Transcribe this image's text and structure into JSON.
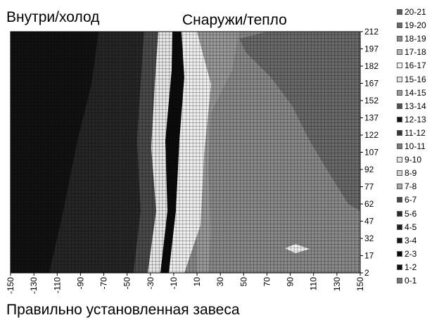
{
  "labels": {
    "left_title": "Внутри/холод",
    "right_title": "Снаружи/тепло",
    "caption": "Правильно установленная завеса"
  },
  "chart_data": {
    "type": "heatmap",
    "subtype": "filled-contour",
    "x_ticks": [
      "-150",
      "-130",
      "-110",
      "-90",
      "-70",
      "-50",
      "-30",
      "-10",
      "10",
      "30",
      "50",
      "70",
      "90",
      "110",
      "130",
      "150"
    ],
    "y_ticks": [
      "212",
      "197",
      "182",
      "167",
      "152",
      "137",
      "122",
      "107",
      "92",
      "77",
      "62",
      "47",
      "32",
      "17",
      "2"
    ],
    "xlim": [
      -150,
      150
    ],
    "ylim": [
      2,
      212
    ],
    "grid": true,
    "legend_position": "right",
    "legend": [
      {
        "label": "20-21",
        "color": "#5e5e5e"
      },
      {
        "label": "19-20",
        "color": "#6a6a6a"
      },
      {
        "label": "18-19",
        "color": "#8c8c8c"
      },
      {
        "label": "17-18",
        "color": "#b4b4b4"
      },
      {
        "label": "16-17",
        "color": "#f2f2f2"
      },
      {
        "label": "15-16",
        "color": "#e2e2e2"
      },
      {
        "label": "14-15",
        "color": "#9a9a9a"
      },
      {
        "label": "13-14",
        "color": "#505050"
      },
      {
        "label": "12-13",
        "color": "#141414"
      },
      {
        "label": "11-12",
        "color": "#363636"
      },
      {
        "label": "10-11",
        "color": "#7a7a7a"
      },
      {
        "label": "9-10",
        "color": "#e6e6e6"
      },
      {
        "label": "8-9",
        "color": "#cfcfcf"
      },
      {
        "label": "7-8",
        "color": "#a8a8a8"
      },
      {
        "label": "6-7",
        "color": "#474747"
      },
      {
        "label": "5-6",
        "color": "#2c2c2c"
      },
      {
        "label": "4-5",
        "color": "#1e1e1e"
      },
      {
        "label": "3-4",
        "color": "#161616"
      },
      {
        "label": "2-3",
        "color": "#0a0a0a"
      },
      {
        "label": "1-2",
        "color": "#101010"
      },
      {
        "label": "0-1",
        "color": "#777777"
      }
    ],
    "regions_note": "dark cold zone on left (x -150..-50), thin light/dark bands near x -30..0, medium grey warm zone on right with darker patch in upper right",
    "series": []
  }
}
